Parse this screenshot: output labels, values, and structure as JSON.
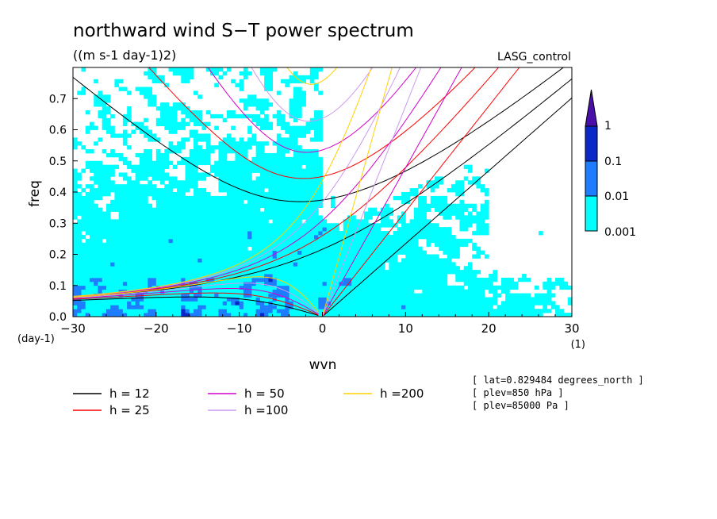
{
  "chart_data": {
    "type": "heatmap",
    "title": "northward wind S−T power spectrum",
    "subtitle": "((m s-1 day-1)2)",
    "run_label": "LASG_control",
    "xlabel": "wvn",
    "ylabel": "freq",
    "x_unit_label": "(1)",
    "y_unit_label": "(day-1)",
    "xlim": [
      -30,
      30
    ],
    "ylim": [
      0,
      0.8
    ],
    "x_ticks": [
      -30,
      -20,
      -10,
      0,
      10,
      20,
      30
    ],
    "x_tick_labels": [
      "−30",
      "−20",
      "−10",
      "0",
      "10",
      "20",
      "30"
    ],
    "y_ticks": [
      0.0,
      0.1,
      0.2,
      0.3,
      0.4,
      0.5,
      0.6,
      0.7
    ],
    "y_tick_labels": [
      "0.0",
      "0.1",
      "0.2",
      "0.3",
      "0.4",
      "0.5",
      "0.6",
      "0.7"
    ],
    "colorbar": {
      "levels": [
        0.001,
        0.01,
        0.1,
        1
      ],
      "labels": [
        "0.001",
        "0.01",
        "0.1",
        "1"
      ],
      "colors": [
        "#00ffff",
        "#1e7cff",
        "#0a28c8",
        "#4a0fa8"
      ]
    },
    "dispersion_curves": [
      {
        "name": "h = 12",
        "h": 12,
        "color": "#000000"
      },
      {
        "name": "h = 25",
        "h": 25,
        "color": "#ff0000"
      },
      {
        "name": "h = 50",
        "h": 50,
        "color": "#d400c8"
      },
      {
        "name": "h =100",
        "h": 100,
        "color": "#cc99ee"
      },
      {
        "name": "h =200",
        "h": 200,
        "color": "#ffd000"
      }
    ],
    "info_lines": [
      "[ lat=0.829484 degrees_north ]",
      "[ plev=850 hPa ]",
      "[ plev=85000 Pa ]"
    ]
  }
}
